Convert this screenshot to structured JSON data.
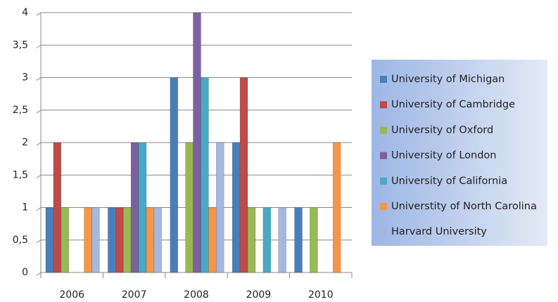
{
  "chart_data": {
    "type": "bar",
    "categories": [
      "2006",
      "2007",
      "2008",
      "2009",
      "2010"
    ],
    "series": [
      {
        "name": "University of Michigan",
        "color": "#4a7ebb",
        "values": [
          1,
          1,
          3,
          2,
          1
        ]
      },
      {
        "name": "University of Cambridge",
        "color": "#be4b48",
        "values": [
          2,
          1,
          0,
          3,
          0
        ]
      },
      {
        "name": "University of Oxford",
        "color": "#98b954",
        "values": [
          1,
          1,
          2,
          1,
          1
        ]
      },
      {
        "name": "University of London",
        "color": "#7d60a0",
        "values": [
          0,
          2,
          4,
          0,
          0
        ]
      },
      {
        "name": "University of California",
        "color": "#46aac5",
        "values": [
          0,
          2,
          3,
          1,
          0
        ]
      },
      {
        "name": "Universtity of North Carolina",
        "color": "#f79646",
        "values": [
          1,
          1,
          1,
          0,
          2
        ]
      },
      {
        "name": "Harvard University",
        "color": "#a5b8dd",
        "values": [
          1,
          1,
          2,
          1,
          0
        ]
      }
    ],
    "ylim": [
      0,
      4
    ],
    "yticks": [
      0,
      {
        "value": 0.5,
        "label": "0,5"
      },
      1,
      {
        "value": 1.5,
        "label": "1,5"
      },
      2,
      {
        "value": 2.5,
        "label": "2,5"
      },
      3,
      {
        "value": 3.5,
        "label": "3,5"
      },
      4
    ],
    "grid": true,
    "legend": "right"
  }
}
